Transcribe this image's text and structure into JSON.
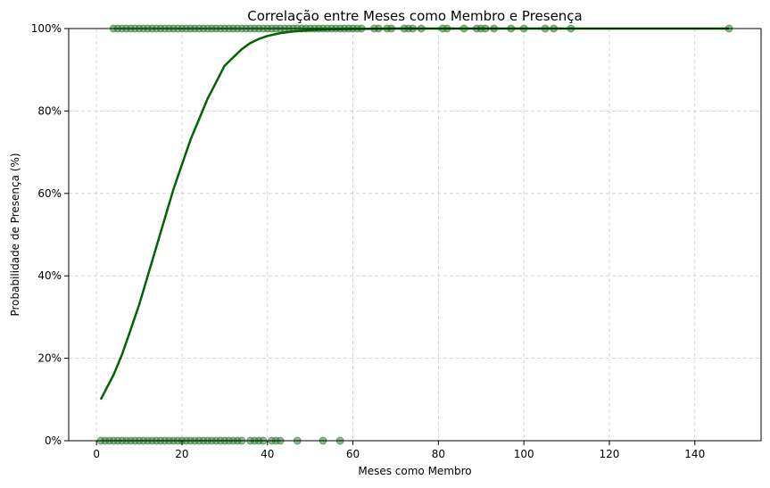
{
  "chart_data": {
    "type": "scatter",
    "title": "Correlação entre Meses como Membro e Presença",
    "xlabel": "Meses como Membro",
    "ylabel": "Probabilidade de Presença (%)",
    "xlim": [
      -6.5,
      155.5
    ],
    "ylim": [
      0,
      1
    ],
    "x_ticks": [
      0,
      20,
      40,
      60,
      80,
      100,
      120,
      140
    ],
    "x_tick_labels": [
      "0",
      "20",
      "40",
      "60",
      "80",
      "100",
      "120",
      "140"
    ],
    "y_ticks": [
      0,
      0.2,
      0.4,
      0.6,
      0.8,
      1.0
    ],
    "y_tick_labels": [
      "0%",
      "20%",
      "40%",
      "60%",
      "80%",
      "100%"
    ],
    "grid": true,
    "colors": {
      "points": "#2e7d32",
      "curve": "#006400",
      "grid": "#cccccc",
      "axis": "#000000"
    },
    "series": [
      {
        "type": "scatter",
        "values": [
          {
            "x": 1,
            "y": 0
          },
          {
            "x": 2,
            "y": 0
          },
          {
            "x": 3,
            "y": 0
          },
          {
            "x": 4,
            "y": 0
          },
          {
            "x": 5,
            "y": 0
          },
          {
            "x": 6,
            "y": 0
          },
          {
            "x": 7,
            "y": 0
          },
          {
            "x": 8,
            "y": 0
          },
          {
            "x": 9,
            "y": 0
          },
          {
            "x": 10,
            "y": 0
          },
          {
            "x": 11,
            "y": 0
          },
          {
            "x": 12,
            "y": 0
          },
          {
            "x": 13,
            "y": 0
          },
          {
            "x": 14,
            "y": 0
          },
          {
            "x": 15,
            "y": 0
          },
          {
            "x": 16,
            "y": 0
          },
          {
            "x": 17,
            "y": 0
          },
          {
            "x": 18,
            "y": 0
          },
          {
            "x": 19,
            "y": 0
          },
          {
            "x": 20,
            "y": 0
          },
          {
            "x": 21,
            "y": 0
          },
          {
            "x": 22,
            "y": 0
          },
          {
            "x": 23,
            "y": 0
          },
          {
            "x": 24,
            "y": 0
          },
          {
            "x": 25,
            "y": 0
          },
          {
            "x": 26,
            "y": 0
          },
          {
            "x": 27,
            "y": 0
          },
          {
            "x": 28,
            "y": 0
          },
          {
            "x": 29,
            "y": 0
          },
          {
            "x": 30,
            "y": 0
          },
          {
            "x": 31,
            "y": 0
          },
          {
            "x": 32,
            "y": 0
          },
          {
            "x": 33,
            "y": 0
          },
          {
            "x": 34,
            "y": 0
          },
          {
            "x": 36,
            "y": 0
          },
          {
            "x": 37,
            "y": 0
          },
          {
            "x": 38,
            "y": 0
          },
          {
            "x": 39,
            "y": 0
          },
          {
            "x": 41,
            "y": 0
          },
          {
            "x": 42,
            "y": 0
          },
          {
            "x": 43,
            "y": 0
          },
          {
            "x": 47,
            "y": 0
          },
          {
            "x": 53,
            "y": 0
          },
          {
            "x": 57,
            "y": 0
          },
          {
            "x": 4,
            "y": 1
          },
          {
            "x": 5,
            "y": 1
          },
          {
            "x": 6,
            "y": 1
          },
          {
            "x": 7,
            "y": 1
          },
          {
            "x": 8,
            "y": 1
          },
          {
            "x": 9,
            "y": 1
          },
          {
            "x": 10,
            "y": 1
          },
          {
            "x": 11,
            "y": 1
          },
          {
            "x": 12,
            "y": 1
          },
          {
            "x": 13,
            "y": 1
          },
          {
            "x": 14,
            "y": 1
          },
          {
            "x": 15,
            "y": 1
          },
          {
            "x": 16,
            "y": 1
          },
          {
            "x": 17,
            "y": 1
          },
          {
            "x": 18,
            "y": 1
          },
          {
            "x": 19,
            "y": 1
          },
          {
            "x": 20,
            "y": 1
          },
          {
            "x": 21,
            "y": 1
          },
          {
            "x": 22,
            "y": 1
          },
          {
            "x": 23,
            "y": 1
          },
          {
            "x": 24,
            "y": 1
          },
          {
            "x": 25,
            "y": 1
          },
          {
            "x": 26,
            "y": 1
          },
          {
            "x": 27,
            "y": 1
          },
          {
            "x": 28,
            "y": 1
          },
          {
            "x": 29,
            "y": 1
          },
          {
            "x": 30,
            "y": 1
          },
          {
            "x": 31,
            "y": 1
          },
          {
            "x": 32,
            "y": 1
          },
          {
            "x": 33,
            "y": 1
          },
          {
            "x": 34,
            "y": 1
          },
          {
            "x": 35,
            "y": 1
          },
          {
            "x": 36,
            "y": 1
          },
          {
            "x": 37,
            "y": 1
          },
          {
            "x": 38,
            "y": 1
          },
          {
            "x": 39,
            "y": 1
          },
          {
            "x": 40,
            "y": 1
          },
          {
            "x": 41,
            "y": 1
          },
          {
            "x": 42,
            "y": 1
          },
          {
            "x": 43,
            "y": 1
          },
          {
            "x": 44,
            "y": 1
          },
          {
            "x": 45,
            "y": 1
          },
          {
            "x": 46,
            "y": 1
          },
          {
            "x": 47,
            "y": 1
          },
          {
            "x": 48,
            "y": 1
          },
          {
            "x": 49,
            "y": 1
          },
          {
            "x": 50,
            "y": 1
          },
          {
            "x": 51,
            "y": 1
          },
          {
            "x": 52,
            "y": 1
          },
          {
            "x": 53,
            "y": 1
          },
          {
            "x": 54,
            "y": 1
          },
          {
            "x": 55,
            "y": 1
          },
          {
            "x": 56,
            "y": 1
          },
          {
            "x": 57,
            "y": 1
          },
          {
            "x": 58,
            "y": 1
          },
          {
            "x": 59,
            "y": 1
          },
          {
            "x": 60,
            "y": 1
          },
          {
            "x": 61,
            "y": 1
          },
          {
            "x": 62,
            "y": 1
          },
          {
            "x": 65,
            "y": 1
          },
          {
            "x": 66,
            "y": 1
          },
          {
            "x": 68,
            "y": 1
          },
          {
            "x": 69,
            "y": 1
          },
          {
            "x": 72,
            "y": 1
          },
          {
            "x": 73,
            "y": 1
          },
          {
            "x": 74,
            "y": 1
          },
          {
            "x": 76,
            "y": 1
          },
          {
            "x": 81,
            "y": 1
          },
          {
            "x": 82,
            "y": 1
          },
          {
            "x": 86,
            "y": 1
          },
          {
            "x": 89,
            "y": 1
          },
          {
            "x": 90,
            "y": 1
          },
          {
            "x": 91,
            "y": 1
          },
          {
            "x": 93,
            "y": 1
          },
          {
            "x": 97,
            "y": 1
          },
          {
            "x": 100,
            "y": 1
          },
          {
            "x": 105,
            "y": 1
          },
          {
            "x": 107,
            "y": 1
          },
          {
            "x": 111,
            "y": 1
          },
          {
            "x": 148,
            "y": 1
          }
        ]
      },
      {
        "type": "line",
        "values": [
          {
            "x": 1,
            "y": 0.1
          },
          {
            "x": 2,
            "y": 0.12
          },
          {
            "x": 4,
            "y": 0.16
          },
          {
            "x": 6,
            "y": 0.21
          },
          {
            "x": 8,
            "y": 0.27
          },
          {
            "x": 10,
            "y": 0.33
          },
          {
            "x": 12,
            "y": 0.4
          },
          {
            "x": 14,
            "y": 0.47
          },
          {
            "x": 16,
            "y": 0.54
          },
          {
            "x": 18,
            "y": 0.61
          },
          {
            "x": 20,
            "y": 0.67
          },
          {
            "x": 22,
            "y": 0.73
          },
          {
            "x": 24,
            "y": 0.78
          },
          {
            "x": 26,
            "y": 0.83
          },
          {
            "x": 28,
            "y": 0.87
          },
          {
            "x": 30,
            "y": 0.91
          },
          {
            "x": 32,
            "y": 0.93
          },
          {
            "x": 34,
            "y": 0.95
          },
          {
            "x": 36,
            "y": 0.965
          },
          {
            "x": 38,
            "y": 0.975
          },
          {
            "x": 40,
            "y": 0.982
          },
          {
            "x": 43,
            "y": 0.989
          },
          {
            "x": 46,
            "y": 0.993
          },
          {
            "x": 50,
            "y": 0.996
          },
          {
            "x": 55,
            "y": 0.998
          },
          {
            "x": 60,
            "y": 0.999
          },
          {
            "x": 70,
            "y": 1.0
          },
          {
            "x": 90,
            "y": 1.0
          },
          {
            "x": 110,
            "y": 1.0
          },
          {
            "x": 130,
            "y": 1.0
          },
          {
            "x": 148,
            "y": 1.0
          }
        ]
      }
    ]
  }
}
